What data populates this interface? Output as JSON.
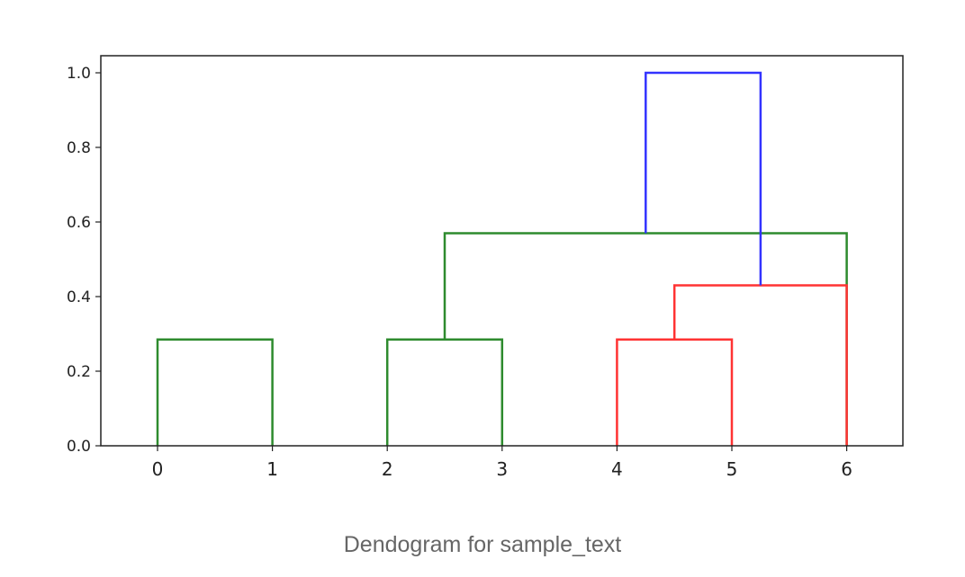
{
  "caption": "Dendogram for sample_text",
  "chart_data": {
    "type": "dendrogram",
    "leaves": [
      "0",
      "1",
      "2",
      "3",
      "4",
      "5",
      "6"
    ],
    "ylim": [
      0.0,
      1.0
    ],
    "yticks": [
      "0.0",
      "0.2",
      "0.4",
      "0.6",
      "0.8",
      "1.0"
    ],
    "grid": false,
    "links": [
      {
        "left": 0,
        "right": 1,
        "height": 0.285,
        "color": "#2e8b2e"
      },
      {
        "left": 2,
        "right": 3,
        "height": 0.285,
        "color": "#2e8b2e"
      },
      {
        "left": 4,
        "right": 5,
        "height": 0.285,
        "color": "#ff3333"
      },
      {
        "left": 6,
        "right": 8,
        "height": 0.57,
        "color": "#2e8b2e"
      },
      {
        "left": 9,
        "right": 6,
        "height": 0.43,
        "color": "#ff3333"
      },
      {
        "left": 10,
        "right": 11,
        "height": 1.0,
        "color": "#3333ff"
      }
    ],
    "colors": {
      "cluster_1": "#2e8b2e",
      "cluster_2": "#ff3333",
      "root": "#3333ff"
    }
  }
}
